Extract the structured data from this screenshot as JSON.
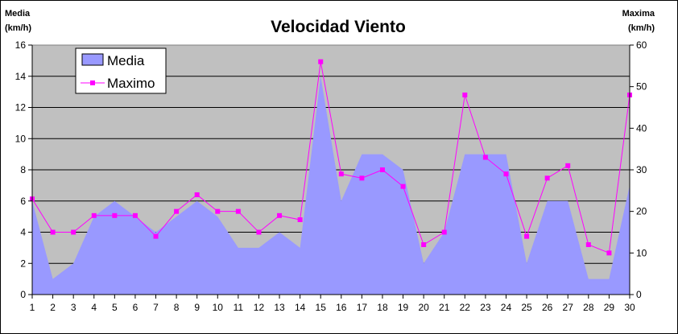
{
  "chart_data": {
    "type": "area",
    "title": "Velocidad Viento",
    "ylabel_left": [
      "Media",
      "(km/h)"
    ],
    "ylabel_right": [
      "Maxima",
      "(km/h)"
    ],
    "x": [
      1,
      2,
      3,
      4,
      5,
      6,
      7,
      8,
      9,
      10,
      11,
      12,
      13,
      14,
      15,
      16,
      17,
      18,
      19,
      20,
      21,
      22,
      23,
      24,
      25,
      26,
      27,
      28,
      29,
      30
    ],
    "ylim_left": [
      0,
      16
    ],
    "yticks_left": [
      0,
      2,
      4,
      6,
      8,
      10,
      12,
      14,
      16
    ],
    "ylim_right": [
      0,
      60
    ],
    "yticks_right": [
      0,
      10,
      20,
      30,
      40,
      50,
      60
    ],
    "grid": true,
    "legend_position": "top-left",
    "series": [
      {
        "name": "Media",
        "kind": "area",
        "axis": "left",
        "color": "#9999ff",
        "values": [
          6,
          1,
          2,
          5,
          6,
          5,
          4,
          5,
          6,
          5,
          3,
          3,
          4,
          3,
          14,
          6,
          9,
          9,
          8,
          2,
          4,
          9,
          9,
          9,
          2,
          6,
          6,
          1,
          1,
          7
        ]
      },
      {
        "name": "Maximo",
        "kind": "line",
        "axis": "right",
        "color": "#ff00ff",
        "values": [
          23,
          15,
          15,
          19,
          19,
          19,
          14,
          20,
          24,
          20,
          20,
          15,
          19,
          18,
          56,
          29,
          28,
          30,
          26,
          12,
          15,
          48,
          33,
          29,
          14,
          28,
          31,
          12,
          10,
          48
        ]
      }
    ]
  },
  "colors": {
    "plot_background": "#c0c0c0",
    "gridline": "#000000"
  }
}
